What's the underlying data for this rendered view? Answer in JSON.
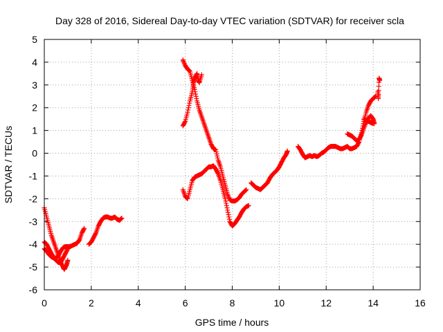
{
  "chart_data": {
    "type": "scatter",
    "title": "Day 328 of 2016, Sidereal Day-to-day VTEC variation (SDTVAR) for receiver scla",
    "xlabel": "GPS time / hours",
    "ylabel": "SDTVAR / TECUs",
    "xlim": [
      0,
      16
    ],
    "ylim": [
      -6,
      5
    ],
    "x_ticks": [
      "0",
      "2",
      "4",
      "6",
      "8",
      "10",
      "12",
      "14",
      "16"
    ],
    "y_ticks": [
      "-6",
      "-5",
      "-4",
      "-3",
      "-2",
      "-1",
      "0",
      "1",
      "2",
      "3",
      "4",
      "5"
    ],
    "grid": true,
    "marker": "plus",
    "color": "#ff0000",
    "segments": [
      [
        [
          0.0,
          -2.4
        ],
        [
          0.1,
          -2.8
        ],
        [
          0.2,
          -3.2
        ],
        [
          0.3,
          -3.6
        ],
        [
          0.4,
          -3.9
        ],
        [
          0.5,
          -4.2
        ],
        [
          0.6,
          -4.5
        ],
        [
          0.7,
          -4.8
        ],
        [
          0.8,
          -5.0
        ],
        [
          0.85,
          -5.1
        ],
        [
          0.9,
          -5.0
        ],
        [
          0.95,
          -4.9
        ],
        [
          1.0,
          -4.7
        ]
      ],
      [
        [
          0.0,
          -3.9
        ],
        [
          0.1,
          -4.0
        ],
        [
          0.2,
          -4.2
        ],
        [
          0.3,
          -4.4
        ],
        [
          0.4,
          -4.6
        ],
        [
          0.5,
          -4.7
        ],
        [
          0.6,
          -4.8
        ],
        [
          0.7,
          -4.8
        ],
        [
          0.8,
          -4.6
        ],
        [
          0.9,
          -4.4
        ],
        [
          1.0,
          -4.2
        ]
      ],
      [
        [
          0.0,
          -4.2
        ],
        [
          0.1,
          -4.3
        ],
        [
          0.2,
          -4.45
        ],
        [
          0.3,
          -4.55
        ],
        [
          0.4,
          -4.6
        ],
        [
          0.5,
          -4.6
        ],
        [
          0.6,
          -4.5
        ],
        [
          0.7,
          -4.3
        ],
        [
          0.8,
          -4.15
        ],
        [
          0.9,
          -4.1
        ],
        [
          1.0,
          -4.1
        ],
        [
          1.1,
          -4.1
        ],
        [
          1.2,
          -4.05
        ],
        [
          1.3,
          -4.0
        ],
        [
          1.4,
          -3.95
        ],
        [
          1.5,
          -3.8
        ],
        [
          1.6,
          -3.5
        ],
        [
          1.7,
          -3.3
        ]
      ],
      [
        [
          1.9,
          -4.0
        ],
        [
          2.0,
          -3.9
        ],
        [
          2.1,
          -3.7
        ],
        [
          2.2,
          -3.5
        ],
        [
          2.3,
          -3.2
        ],
        [
          2.4,
          -3.0
        ],
        [
          2.5,
          -2.85
        ],
        [
          2.6,
          -2.8
        ],
        [
          2.7,
          -2.8
        ],
        [
          2.8,
          -2.85
        ],
        [
          2.9,
          -2.85
        ],
        [
          3.0,
          -2.8
        ],
        [
          3.1,
          -2.9
        ],
        [
          3.2,
          -2.95
        ],
        [
          3.3,
          -2.85
        ]
      ],
      [
        [
          5.9,
          1.2
        ],
        [
          6.0,
          1.4
        ],
        [
          6.1,
          1.8
        ],
        [
          6.2,
          2.3
        ],
        [
          6.3,
          2.7
        ],
        [
          6.35,
          3.1
        ],
        [
          6.4,
          3.3
        ],
        [
          6.5,
          3.5
        ],
        [
          6.55,
          3.2
        ],
        [
          6.6,
          3.1
        ],
        [
          6.7,
          3.45
        ]
      ],
      [
        [
          5.9,
          4.1
        ],
        [
          6.0,
          3.85
        ],
        [
          6.1,
          3.7
        ],
        [
          6.2,
          3.6
        ],
        [
          6.3,
          3.2
        ],
        [
          6.4,
          2.8
        ],
        [
          6.5,
          2.3
        ],
        [
          6.6,
          1.9
        ],
        [
          6.7,
          1.6
        ],
        [
          6.8,
          1.3
        ],
        [
          6.9,
          1.0
        ],
        [
          7.0,
          0.7
        ],
        [
          7.1,
          0.4
        ],
        [
          7.2,
          0.2
        ],
        [
          7.3,
          0.15
        ],
        [
          7.4,
          -0.3
        ],
        [
          7.5,
          -0.6
        ],
        [
          7.6,
          -1.0
        ],
        [
          7.7,
          -1.4
        ],
        [
          7.8,
          -1.8
        ],
        [
          7.9,
          -2.05
        ],
        [
          8.0,
          -2.1
        ],
        [
          8.1,
          -2.1
        ],
        [
          8.2,
          -2.05
        ],
        [
          8.3,
          -1.95
        ],
        [
          8.4,
          -1.8
        ],
        [
          8.5,
          -1.7
        ],
        [
          8.6,
          -1.6
        ]
      ],
      [
        [
          5.9,
          -1.6
        ],
        [
          6.0,
          -1.9
        ],
        [
          6.1,
          -2.0
        ],
        [
          6.2,
          -1.6
        ],
        [
          6.3,
          -1.2
        ],
        [
          6.4,
          -1.05
        ],
        [
          6.5,
          -1.0
        ],
        [
          6.6,
          -0.95
        ],
        [
          6.7,
          -0.9
        ],
        [
          6.8,
          -0.8
        ],
        [
          6.9,
          -0.7
        ],
        [
          7.0,
          -0.6
        ],
        [
          7.1,
          -0.6
        ],
        [
          7.2,
          -0.55
        ],
        [
          7.3,
          -0.7
        ],
        [
          7.4,
          -0.9
        ],
        [
          7.5,
          -1.2
        ],
        [
          7.6,
          -1.6
        ],
        [
          7.7,
          -2.0
        ],
        [
          7.8,
          -2.5
        ],
        [
          7.9,
          -3.0
        ],
        [
          8.0,
          -3.2
        ],
        [
          8.1,
          -3.1
        ],
        [
          8.2,
          -2.95
        ],
        [
          8.3,
          -2.8
        ],
        [
          8.4,
          -2.6
        ],
        [
          8.5,
          -2.45
        ],
        [
          8.6,
          -2.35
        ],
        [
          8.7,
          -2.3
        ]
      ],
      [
        [
          8.8,
          -1.3
        ],
        [
          8.9,
          -1.4
        ],
        [
          9.0,
          -1.5
        ],
        [
          9.1,
          -1.55
        ],
        [
          9.2,
          -1.6
        ],
        [
          9.3,
          -1.5
        ],
        [
          9.4,
          -1.4
        ],
        [
          9.5,
          -1.3
        ],
        [
          9.6,
          -1.1
        ],
        [
          9.7,
          -0.95
        ],
        [
          9.8,
          -0.85
        ],
        [
          9.9,
          -0.75
        ],
        [
          10.0,
          -0.6
        ],
        [
          10.1,
          -0.4
        ],
        [
          10.2,
          -0.2
        ],
        [
          10.3,
          -0.05
        ],
        [
          10.35,
          0.1
        ]
      ],
      [
        [
          10.8,
          0.3
        ],
        [
          10.9,
          0.15
        ],
        [
          11.0,
          -0.05
        ],
        [
          11.1,
          -0.2
        ],
        [
          11.2,
          -0.15
        ],
        [
          11.3,
          -0.1
        ],
        [
          11.4,
          -0.15
        ],
        [
          11.5,
          -0.1
        ],
        [
          11.6,
          -0.15
        ],
        [
          11.7,
          -0.1
        ],
        [
          11.8,
          0.0
        ],
        [
          11.9,
          0.05
        ],
        [
          12.0,
          0.15
        ],
        [
          12.1,
          0.25
        ],
        [
          12.2,
          0.3
        ],
        [
          12.3,
          0.3
        ],
        [
          12.4,
          0.3
        ],
        [
          12.5,
          0.25
        ],
        [
          12.6,
          0.2
        ],
        [
          12.7,
          0.2
        ],
        [
          12.8,
          0.25
        ],
        [
          12.9,
          0.3
        ],
        [
          13.0,
          0.2
        ],
        [
          13.1,
          0.2
        ],
        [
          13.2,
          0.25
        ],
        [
          13.3,
          0.3
        ],
        [
          13.4,
          0.5
        ],
        [
          13.5,
          0.9
        ],
        [
          13.6,
          1.4
        ],
        [
          13.7,
          1.8
        ],
        [
          13.8,
          2.1
        ],
        [
          13.9,
          2.3
        ],
        [
          14.0,
          2.4
        ],
        [
          14.1,
          2.5
        ]
      ],
      [
        [
          12.9,
          0.85
        ],
        [
          13.0,
          0.8
        ],
        [
          13.1,
          0.75
        ],
        [
          13.2,
          0.65
        ],
        [
          13.3,
          0.55
        ],
        [
          13.4,
          0.6
        ],
        [
          13.5,
          0.8
        ],
        [
          13.6,
          1.1
        ],
        [
          13.7,
          1.35
        ],
        [
          13.8,
          1.55
        ],
        [
          13.9,
          1.65
        ],
        [
          14.0,
          1.5
        ],
        [
          14.05,
          1.3
        ]
      ],
      [
        [
          13.6,
          1.5
        ],
        [
          13.7,
          1.45
        ],
        [
          13.8,
          1.4
        ],
        [
          13.9,
          1.35
        ],
        [
          14.0,
          1.3
        ]
      ],
      [
        [
          14.2,
          2.7
        ],
        [
          14.22,
          2.4
        ],
        [
          14.25,
          3.3
        ],
        [
          14.28,
          3.2
        ]
      ]
    ]
  }
}
